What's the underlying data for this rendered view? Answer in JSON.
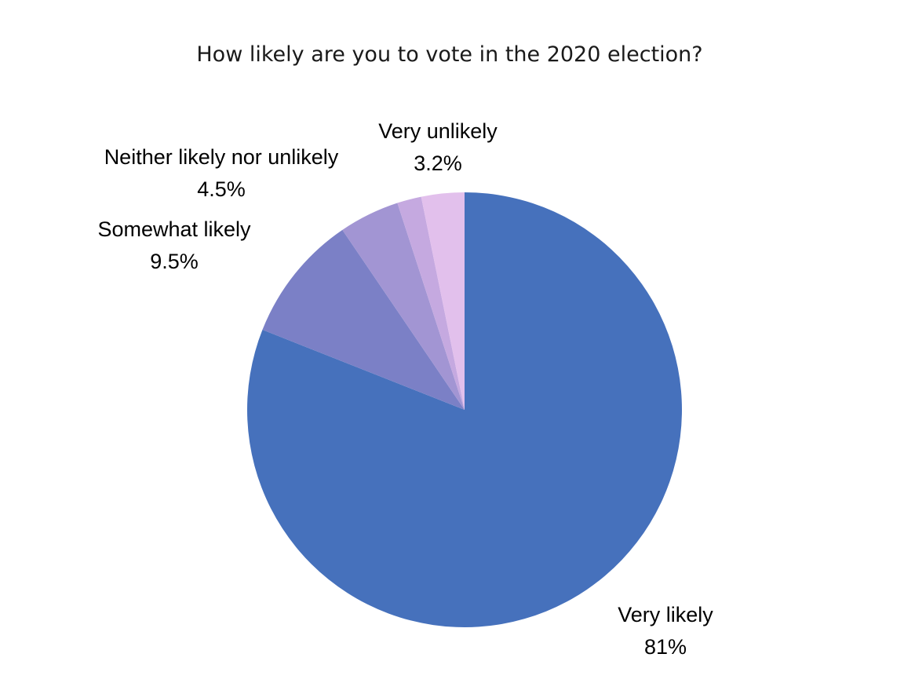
{
  "chart_data": {
    "type": "pie",
    "title": "How likely are you to vote in the 2020 election?",
    "categories": [
      "Very likely",
      "Somewhat likely",
      "Neither likely nor unlikely",
      "",
      "Very unlikely"
    ],
    "values": [
      81,
      9.5,
      4.5,
      1.8,
      3.2
    ],
    "value_labels": [
      "81%",
      "9.5%",
      "4.5%",
      "",
      "3.2%"
    ],
    "colors": [
      "#4671BC",
      "#7B80C6",
      "#A295D3",
      "#C5A9E0",
      "#E2C0EC"
    ],
    "start": "12 o'clock",
    "direction": "clockwise",
    "legend": "none"
  }
}
